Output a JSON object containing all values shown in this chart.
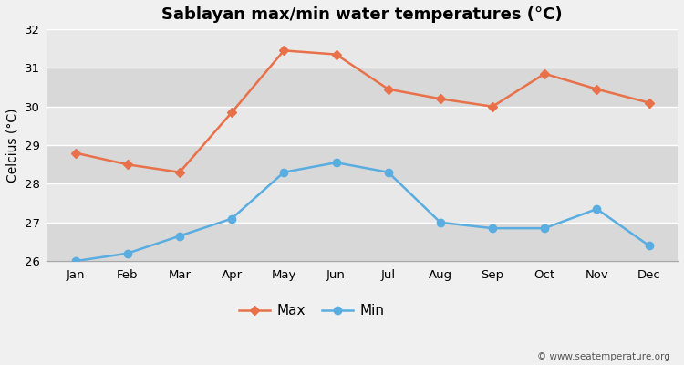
{
  "title": "Sablayan max/min water temperatures (°C)",
  "ylabel": "Celcius (°C)",
  "months": [
    "Jan",
    "Feb",
    "Mar",
    "Apr",
    "May",
    "Jun",
    "Jul",
    "Aug",
    "Sep",
    "Oct",
    "Nov",
    "Dec"
  ],
  "max_temps": [
    28.8,
    28.5,
    28.3,
    29.85,
    31.45,
    31.35,
    30.45,
    30.2,
    30.0,
    30.85,
    30.45,
    30.1
  ],
  "min_temps": [
    26.0,
    26.2,
    26.65,
    27.1,
    28.3,
    28.55,
    28.3,
    27.0,
    26.85,
    26.85,
    27.35,
    26.4
  ],
  "max_color": "#e8714a",
  "min_color": "#5aade0",
  "fig_bg_color": "#f0f0f0",
  "plot_bg_color": "#e8e8e8",
  "band_colors": [
    "#d8d8d8",
    "#e8e8e8"
  ],
  "grid_color": "#ffffff",
  "ylim": [
    26,
    32
  ],
  "yticks": [
    26,
    27,
    28,
    29,
    30,
    31,
    32
  ],
  "watermark": "© www.seatemperature.org",
  "title_fontsize": 13,
  "ylabel_fontsize": 10,
  "tick_fontsize": 9.5,
  "legend_labels": [
    "Max",
    "Min"
  ],
  "legend_fontsize": 11
}
